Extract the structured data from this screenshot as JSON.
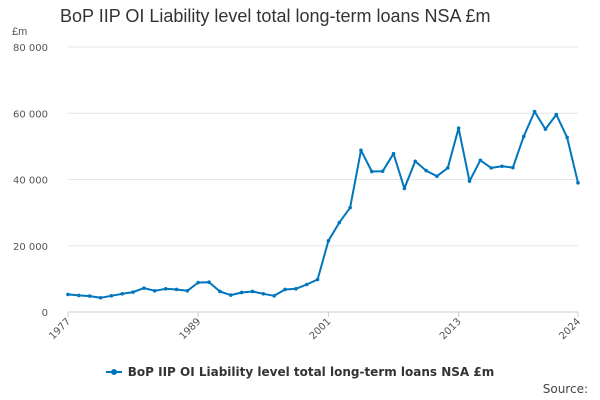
{
  "title": "BoP IIP OI Liability level total long-term loans NSA £m",
  "unit_label": "£m",
  "source_label": "Source:",
  "colors": {
    "series": "#0076bc",
    "grid": "#e6e6e6",
    "axis": "#cccccc"
  },
  "chart_data": {
    "type": "line",
    "title": "BoP IIP OI Liability level total long-term loans NSA £m",
    "ylabel": "£m",
    "xlabel": "",
    "ylim": [
      0,
      80000
    ],
    "xlim": [
      1977,
      2024
    ],
    "yticks": [
      0,
      20000,
      40000,
      60000,
      80000
    ],
    "ytick_labels": [
      "0",
      "20 000",
      "40 000",
      "60 000",
      "80 000"
    ],
    "xticks": [
      1977,
      1989,
      2001,
      2013,
      2024
    ],
    "grid": true,
    "legend_position": "bottom",
    "series": [
      {
        "name": "BoP IIP OI Liability level total long-term loans NSA £m",
        "x": [
          1977,
          1978,
          1979,
          1980,
          1981,
          1982,
          1983,
          1984,
          1985,
          1986,
          1987,
          1988,
          1989,
          1990,
          1991,
          1992,
          1993,
          1994,
          1995,
          1996,
          1997,
          1998,
          1999,
          2000,
          2001,
          2002,
          2003,
          2004,
          2005,
          2006,
          2007,
          2008,
          2009,
          2010,
          2011,
          2012,
          2013,
          2014,
          2015,
          2016,
          2017,
          2018,
          2019,
          2020,
          2021,
          2022,
          2023,
          2024
        ],
        "values": [
          5300,
          5000,
          4800,
          4300,
          4900,
          5500,
          6000,
          7200,
          6400,
          7000,
          6800,
          6400,
          8900,
          9000,
          6200,
          5100,
          5900,
          6200,
          5500,
          4900,
          6800,
          7000,
          8300,
          9800,
          21500,
          27000,
          31500,
          48800,
          42400,
          42500,
          47800,
          37300,
          45500,
          42700,
          41000,
          43500,
          55500,
          39500,
          45800,
          43500,
          44000,
          43600,
          53000,
          60500,
          55200,
          59600,
          52700,
          39000
        ]
      }
    ]
  }
}
